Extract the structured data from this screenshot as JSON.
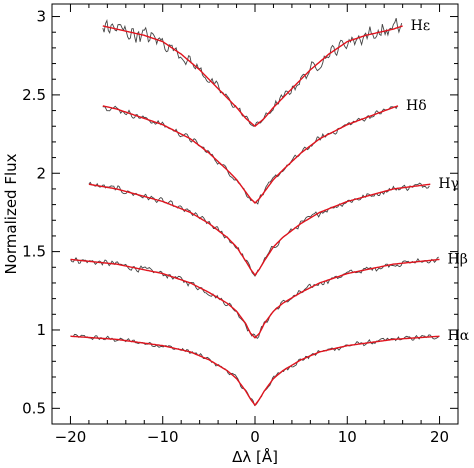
{
  "chart_data": {
    "type": "line",
    "title": "",
    "xlabel": "Δλ [Å]",
    "ylabel": "Normalized Flux",
    "xlim": [
      -22,
      22
    ],
    "ylim": [
      0.4,
      3.08
    ],
    "xticks": [
      -20,
      -10,
      0,
      10,
      20
    ],
    "xtick_labels": [
      "−20",
      "−10",
      "0",
      "10",
      "20"
    ],
    "yticks": [
      0.5,
      1,
      1.5,
      2,
      2.5,
      3
    ],
    "ytick_labels": [
      "0.5",
      "1",
      "1.5",
      "2",
      "2.5",
      "3"
    ],
    "grid": false,
    "legend": "none",
    "colors": {
      "observed": "#444444",
      "model": "#e0141e",
      "axes": "#000000"
    },
    "series": [
      {
        "name": "Hα",
        "x_range": [
          -20,
          20
        ],
        "model": {
          "x": [
            -20,
            -15,
            -10,
            -7,
            -5,
            -3,
            -2,
            -1,
            -0.5,
            0,
            0.5,
            1,
            2,
            3,
            5,
            7,
            10,
            15,
            20
          ],
          "y": [
            0.96,
            0.94,
            0.9,
            0.86,
            0.81,
            0.74,
            0.69,
            0.61,
            0.56,
            0.52,
            0.56,
            0.61,
            0.69,
            0.74,
            0.81,
            0.86,
            0.9,
            0.94,
            0.96
          ]
        },
        "observed_noise": 0.02
      },
      {
        "name": "Hβ",
        "x_range": [
          -20,
          20
        ],
        "model": {
          "x": [
            -20,
            -15,
            -10,
            -7,
            -5,
            -3,
            -2,
            -1,
            -0.5,
            0,
            0.5,
            1,
            2,
            3,
            5,
            7,
            10,
            15,
            20
          ],
          "y": [
            1.45,
            1.42,
            1.36,
            1.3,
            1.24,
            1.17,
            1.12,
            1.04,
            0.98,
            0.95,
            0.98,
            1.04,
            1.12,
            1.17,
            1.24,
            1.3,
            1.36,
            1.42,
            1.45
          ]
        },
        "observed_noise": 0.025
      },
      {
        "name": "Hγ",
        "x_range": [
          -18,
          19
        ],
        "model": {
          "x": [
            -18,
            -15,
            -10,
            -7,
            -5,
            -3,
            -2,
            -1,
            -0.5,
            0,
            0.5,
            1,
            2,
            3,
            5,
            7,
            10,
            15,
            19
          ],
          "y": [
            1.93,
            1.9,
            1.82,
            1.75,
            1.68,
            1.59,
            1.53,
            1.44,
            1.39,
            1.35,
            1.39,
            1.44,
            1.53,
            1.59,
            1.68,
            1.75,
            1.82,
            1.9,
            1.93
          ]
        },
        "observed_noise": 0.025
      },
      {
        "name": "Hδ",
        "x_range": [
          -16.5,
          15.5
        ],
        "model": {
          "x": [
            -16.5,
            -15,
            -10,
            -7,
            -5,
            -3,
            -2,
            -1,
            -0.5,
            0,
            0.5,
            1,
            2,
            3,
            5,
            7,
            10,
            15,
            15.5
          ],
          "y": [
            2.43,
            2.41,
            2.31,
            2.22,
            2.13,
            2.02,
            1.96,
            1.88,
            1.84,
            1.81,
            1.84,
            1.88,
            1.96,
            2.02,
            2.13,
            2.22,
            2.31,
            2.42,
            2.43
          ]
        },
        "observed_noise": 0.025
      },
      {
        "name": "Hε",
        "x_range": [
          -16.5,
          16
        ],
        "model": {
          "x": [
            -16.5,
            -15,
            -12,
            -10,
            -8,
            -6,
            -4,
            -2,
            -1,
            0,
            1,
            2,
            4,
            6,
            8,
            10,
            12,
            15,
            16
          ],
          "y": [
            2.94,
            2.92,
            2.88,
            2.84,
            2.76,
            2.66,
            2.54,
            2.42,
            2.35,
            2.3,
            2.35,
            2.42,
            2.54,
            2.66,
            2.76,
            2.84,
            2.88,
            2.92,
            2.94
          ]
        },
        "observed_noise": 0.06
      }
    ]
  }
}
